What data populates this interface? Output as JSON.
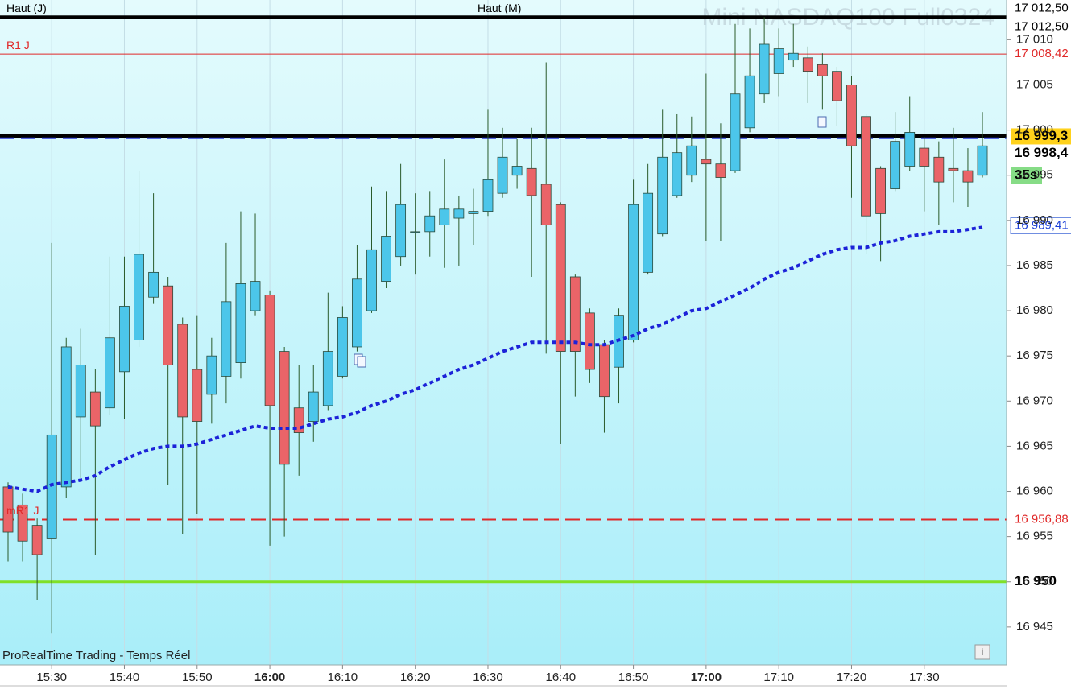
{
  "chart_data": {
    "type": "candlestick",
    "title": "Mini NASDAQ100 Full0324",
    "source": "ProRealTime Trading - Temps Réel",
    "countdown": "35s",
    "countdown_color": "#86dc86",
    "up_color": "#4cc6ea",
    "down_color": "#ea6468",
    "categories": [
      null,
      null,
      null,
      "15:30",
      null,
      null,
      null,
      null,
      "15:40",
      null,
      null,
      null,
      null,
      "15:50",
      null,
      null,
      null,
      null,
      "16:00",
      null,
      null,
      null,
      null,
      "16:10",
      null,
      null,
      null,
      null,
      "16:20",
      null,
      null,
      null,
      null,
      "16:30",
      null,
      null,
      null,
      null,
      "16:40",
      null,
      null,
      null,
      null,
      "16:50",
      null,
      null,
      null,
      null,
      "17:00",
      null,
      null,
      null,
      null,
      "17:10",
      null,
      null,
      null,
      null,
      "17:20",
      null,
      null,
      null,
      null,
      "17:30",
      null,
      null,
      null,
      null
    ],
    "open": [
      16960.5,
      16958.5,
      16956.25,
      16954.75,
      16960.5,
      16968.25,
      16971,
      16969.25,
      16973.25,
      16976.75,
      16981.5,
      16982.75,
      16978.5,
      16973.5,
      16970.75,
      16972.75,
      16974.25,
      16980,
      16981.75,
      16975.5,
      16969.25,
      16967.75,
      16969.5,
      16972.75,
      16976,
      16980,
      16983.25,
      16986,
      16988.75,
      16988.75,
      16989.5,
      16990.25,
      16990.75,
      16991,
      16993,
      16995,
      16995.75,
      16994,
      16991.75,
      16983.75,
      16979.75,
      16976.25,
      16973.75,
      16976.75,
      16984.25,
      16988.5,
      16992.75,
      16995,
      16996.75,
      16996.25,
      16995.5,
      17000.25,
      17004,
      17006.25,
      17007.75,
      17008,
      17007.25,
      17006.5,
      17005,
      17001.5,
      16995.75,
      16993.5,
      16996,
      16998,
      16997,
      16995.75,
      16995.5,
      16995
    ],
    "high": [
      16961,
      16959.75,
      16957,
      16987.5,
      16977,
      16978,
      16973.5,
      16986,
      16986,
      16995.5,
      16993,
      16983.75,
      16979.25,
      16979.5,
      16977,
      16987.5,
      16991,
      16990.75,
      16982.25,
      16976,
      16974,
      16974,
      16982,
      16980.5,
      16987.25,
      16993.75,
      16993.25,
      16996.25,
      16993,
      16993.25,
      16996.75,
      16992.75,
      16993.5,
      17002.25,
      17000.25,
      16999,
      17000.25,
      17007.5,
      16992,
      16984,
      16980.25,
      16976.75,
      16980.25,
      16994.5,
      16996.25,
      17002.25,
      17001.75,
      17001.5,
      17006.25,
      17000.75,
      17011.75,
      17011.25,
      17012.5,
      17011.25,
      17011.75,
      17009.25,
      17008.5,
      17007,
      17006,
      17001.75,
      16996,
      17002,
      17003.75,
      16999.25,
      16998.75,
      17000.25,
      16998,
      17002
    ],
    "low": [
      16952.25,
      16952.25,
      16948,
      16944.25,
      16959.25,
      16961.5,
      16953,
      16968.5,
      16968,
      16976,
      16980.75,
      16960.75,
      16955.25,
      16957.5,
      16967.5,
      16969.75,
      16972.5,
      16979.5,
      16954,
      16955,
      16961.75,
      16965.5,
      16969,
      16972.5,
      16975.5,
      16979.75,
      16982.5,
      16985,
      16984,
      16986,
      16984.75,
      16985,
      16987.25,
      16990.5,
      16992.5,
      16993.5,
      16983.75,
      16975.25,
      16965.25,
      16970.5,
      16972,
      16966.5,
      16969.75,
      16976.5,
      16984,
      16988.25,
      16992.5,
      16994.25,
      16987.75,
      16987.75,
      16995.25,
      16999.75,
      17003,
      17003.75,
      17007,
      17003,
      17002.25,
      17000.5,
      16992.5,
      16986.25,
      16985.5,
      16993.25,
      16995.5,
      16991,
      16989.5,
      16992,
      16991.5,
      16994.75
    ],
    "close": [
      16955.5,
      16954.5,
      16953,
      16966.25,
      16976,
      16974,
      16967.25,
      16977,
      16980.5,
      16986.25,
      16984.25,
      16974,
      16968.25,
      16967.75,
      16975,
      16981,
      16983,
      16983.25,
      16969.5,
      16963,
      16966.5,
      16971,
      16975.5,
      16979.25,
      16983.5,
      16986.75,
      16988.25,
      16991.75,
      16988.75,
      16990.5,
      16991.25,
      16991.25,
      16991,
      16994.5,
      16997,
      16996,
      16992.75,
      16989.5,
      16975.5,
      16975.5,
      16973.5,
      16970.5,
      16979.5,
      16991.75,
      16993,
      16997,
      16997.5,
      16998.25,
      16996.25,
      16994.75,
      17004,
      17006,
      17009.5,
      17009,
      17008.5,
      17006.5,
      17006,
      17003.25,
      16998.25,
      16990.5,
      16990.75,
      16998.75,
      16999.75,
      16996,
      16994.25,
      16995.5,
      16994.25,
      16998.25
    ],
    "moving_average": {
      "color": "#1c22d8",
      "values": [
        16960.5,
        16960.25,
        16960,
        16960.75,
        16961,
        16961.25,
        16961.75,
        16962.75,
        16963.5,
        16964.25,
        16964.75,
        16965,
        16965,
        16965.25,
        16965.75,
        16966.25,
        16966.75,
        16967.25,
        16967,
        16967,
        16967,
        16967.5,
        16968,
        16968.25,
        16968.75,
        16969.5,
        16970,
        16970.75,
        16971.25,
        16972,
        16972.75,
        16973.5,
        16974,
        16974.75,
        16975.5,
        16976,
        16976.5,
        16976.5,
        16976.5,
        16976.5,
        16976.25,
        16976.25,
        16976.75,
        16977.25,
        16978,
        16978.5,
        16979.25,
        16980,
        16980.25,
        16981,
        16981.75,
        16982.5,
        16983.5,
        16984.25,
        16984.75,
        16985.5,
        16986.25,
        16986.75,
        16987,
        16987,
        16987.5,
        16987.75,
        16988.25,
        16988.5,
        16988.75,
        16988.75,
        16989,
        16989.25
      ]
    },
    "levels": [
      {
        "name": "Haut (J)",
        "value": 17012.5,
        "color": "#000000",
        "style": "solid",
        "width": 4
      },
      {
        "name": "Haut (M)",
        "value": 17012.5,
        "color": "#000000",
        "style": "solid",
        "width": 4
      },
      {
        "name": "R1 J",
        "value": 17008.42,
        "color": "#e02828",
        "style": "solid",
        "width": 1
      },
      {
        "value": 16999.3,
        "color": "#000000",
        "style": "solid",
        "width": 5
      },
      {
        "value": 16999.1,
        "color": "#2a3ad8",
        "style": "dashed",
        "width": 2
      },
      {
        "name": "mR1 J",
        "value": 16956.88,
        "color": "#e02828",
        "style": "dashed",
        "width": 2
      },
      {
        "value": 16950,
        "color": "#80e028",
        "style": "solid",
        "width": 3
      }
    ],
    "axis_labels": [
      {
        "value": 17012.5,
        "label": "17 012,50",
        "color": "#000000",
        "fill": "#ffffff"
      },
      {
        "value": 17012.5,
        "label": "17 012,50",
        "color": "#000000",
        "fill": "#ffffff"
      },
      {
        "value": 17008.42,
        "label": "17 008,42",
        "color": "#e02828",
        "fill": "#ffffff"
      },
      {
        "value": 16999.3,
        "label": "16 999,3",
        "color": "#000000",
        "fill": "#ffd21c",
        "bold": true
      },
      {
        "value": 16998.4,
        "label": "16 998,4",
        "color": "#000000",
        "fill": "#ffffff",
        "bold": true
      },
      {
        "value": 16989.41,
        "label": "16 989,41",
        "color": "#1c40d8",
        "fill": "#ffffff",
        "border": "#6a8ae0"
      },
      {
        "value": 16956.88,
        "label": "16 956,88",
        "color": "#e02828",
        "fill": "#ffffff"
      },
      {
        "value": 16950,
        "label": "16 950",
        "color": "#000000",
        "fill": "#ffffff",
        "bold": true
      }
    ],
    "ylim": [
      16940.8,
      17014.4
    ],
    "yticks": [
      {
        "value": 16945,
        "label": "16 945"
      },
      {
        "value": 16950,
        "label": "16 950"
      },
      {
        "value": 16955,
        "label": "16 955"
      },
      {
        "value": 16960,
        "label": "16 960"
      },
      {
        "value": 16965,
        "label": "16 965"
      },
      {
        "value": 16970,
        "label": "16 970"
      },
      {
        "value": 16975,
        "label": "16 975"
      },
      {
        "value": 16980,
        "label": "16 980"
      },
      {
        "value": 16985,
        "label": "16 985"
      },
      {
        "value": 16990,
        "label": "16 990"
      },
      {
        "value": 16995,
        "label": "16 995"
      },
      {
        "value": 17000,
        "label": "17 000"
      },
      {
        "value": 17005,
        "label": "17 005"
      },
      {
        "value": 17010,
        "label": "17 010"
      }
    ],
    "grid": true
  }
}
